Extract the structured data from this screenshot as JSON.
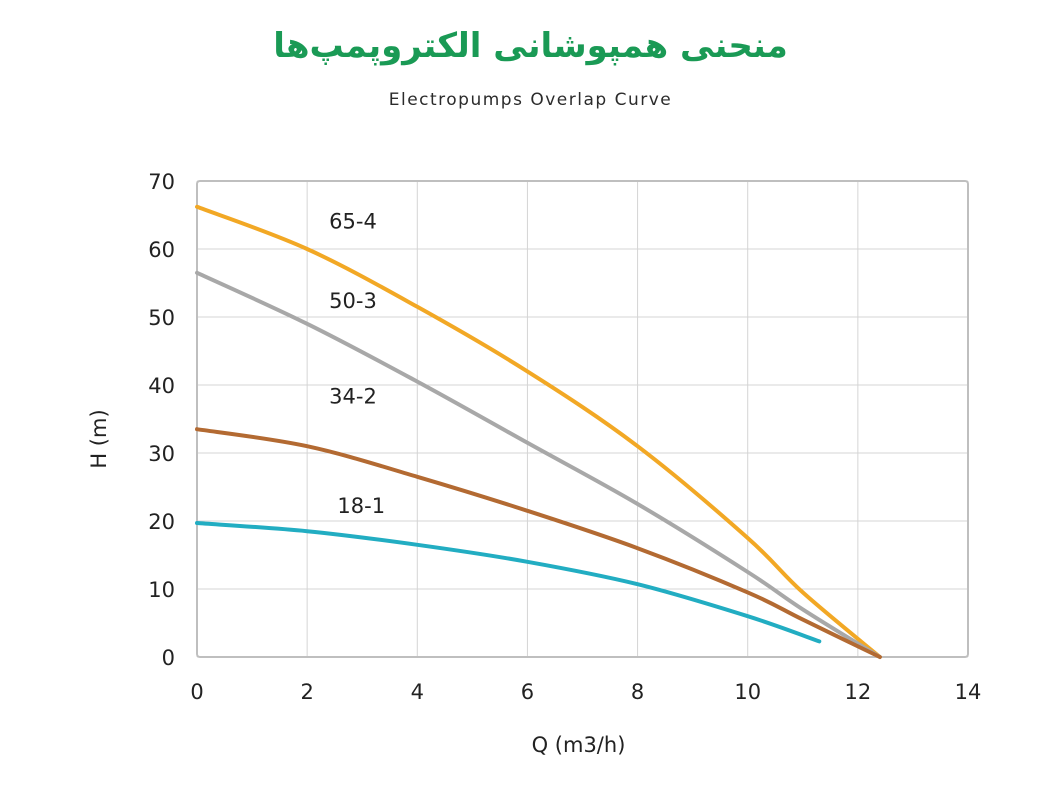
{
  "header": {
    "title": "منحنی همپوشانی الکتروپمپ‌ها",
    "subtitle": "Electropumps Overlap Curve"
  },
  "chart_data": {
    "type": "line",
    "xlabel": "Q (m3/h)",
    "ylabel": "H (m)",
    "xlim": [
      0,
      14
    ],
    "ylim": [
      0,
      70
    ],
    "xticks": [
      "0",
      "2",
      "4",
      "6",
      "8",
      "10",
      "12",
      "14"
    ],
    "yticks": [
      "0",
      "10",
      "20",
      "30",
      "40",
      "50",
      "60",
      "70"
    ],
    "grid": true,
    "series": [
      {
        "name": "65-4",
        "color": "#f2a825",
        "label_at": [
          2.4,
          63
        ],
        "points": [
          [
            0,
            66.2
          ],
          [
            2,
            60
          ],
          [
            4,
            51.5
          ],
          [
            6,
            42
          ],
          [
            8,
            31
          ],
          [
            10,
            17.5
          ],
          [
            11,
            9.5
          ],
          [
            12.4,
            0
          ]
        ]
      },
      {
        "name": "50-3",
        "color": "#a8a8a8",
        "label_at": [
          2.4,
          51.3
        ],
        "points": [
          [
            0,
            56.5
          ],
          [
            2,
            49
          ],
          [
            4,
            40.5
          ],
          [
            6,
            31.5
          ],
          [
            8,
            22.5
          ],
          [
            10,
            12.5
          ],
          [
            11,
            7
          ],
          [
            12.4,
            0
          ]
        ]
      },
      {
        "name": "34-2",
        "color": "#b36a32",
        "label_at": [
          2.4,
          37.3
        ],
        "points": [
          [
            0,
            33.5
          ],
          [
            2,
            31
          ],
          [
            4,
            26.5
          ],
          [
            6,
            21.5
          ],
          [
            8,
            16
          ],
          [
            10,
            9.5
          ],
          [
            11,
            5.5
          ],
          [
            12.4,
            0
          ]
        ]
      },
      {
        "name": "18-1",
        "color": "#22adc2",
        "label_at": [
          2.55,
          21.2
        ],
        "points": [
          [
            0,
            19.7
          ],
          [
            2,
            18.5
          ],
          [
            4,
            16.5
          ],
          [
            6,
            14
          ],
          [
            8,
            10.7
          ],
          [
            10,
            6
          ],
          [
            11.3,
            2.3
          ]
        ]
      }
    ]
  }
}
